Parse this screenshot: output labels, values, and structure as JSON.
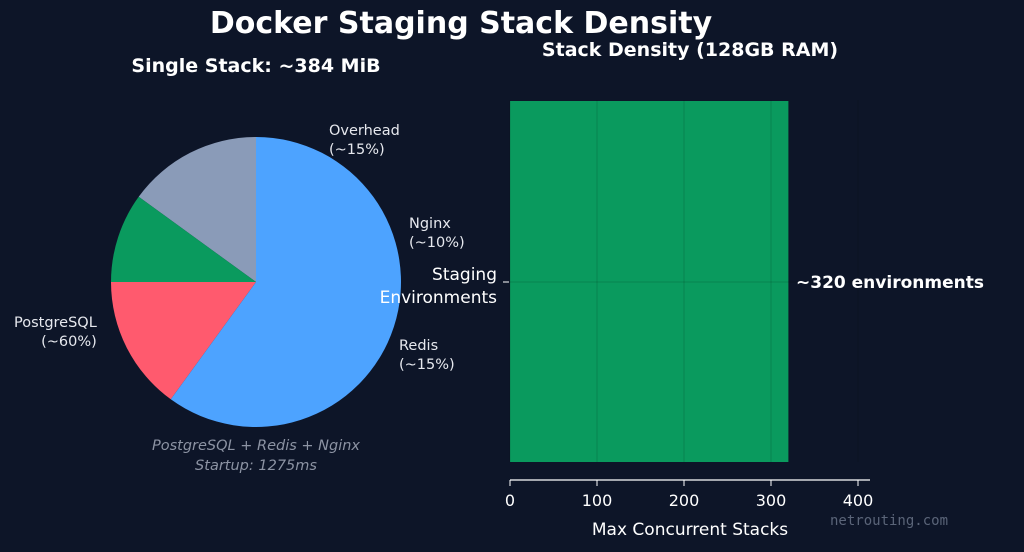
{
  "title": "Docker Staging Stack Density",
  "watermark": "netrouting.com",
  "colors": {
    "background": "#0d1528",
    "postgres": "#4da3ff",
    "redis": "#ff5a6e",
    "nginx": "#0a9a5e",
    "overhead": "#8a9bb8",
    "bar": "#0a9a5e"
  },
  "chart_data": [
    {
      "type": "pie",
      "title": "Single Stack: ~384 MiB",
      "slices": [
        {
          "label": "Overhead\n(~15%)",
          "value": 15,
          "color": "#8a9bb8"
        },
        {
          "label": "Nginx\n(~10%)",
          "value": 10,
          "color": "#0a9a5e"
        },
        {
          "label": "Redis\n(~15%)",
          "value": 15,
          "color": "#ff5a6e"
        },
        {
          "label": "PostgreSQL\n(~60%)",
          "value": 60,
          "color": "#4da3ff"
        }
      ],
      "annotation": [
        "PostgreSQL + Redis + Nginx",
        "Startup: 1275ms"
      ]
    },
    {
      "type": "bar",
      "orientation": "horizontal",
      "title": "Stack Density (128GB RAM)",
      "categories": [
        "Staging\nEnvironments"
      ],
      "values": [
        320
      ],
      "value_label": "~320 environments",
      "xlabel": "Max Concurrent Stacks",
      "xlim": [
        0,
        400
      ],
      "xticks": [
        0,
        100,
        200,
        300,
        400
      ],
      "grid": true
    }
  ]
}
